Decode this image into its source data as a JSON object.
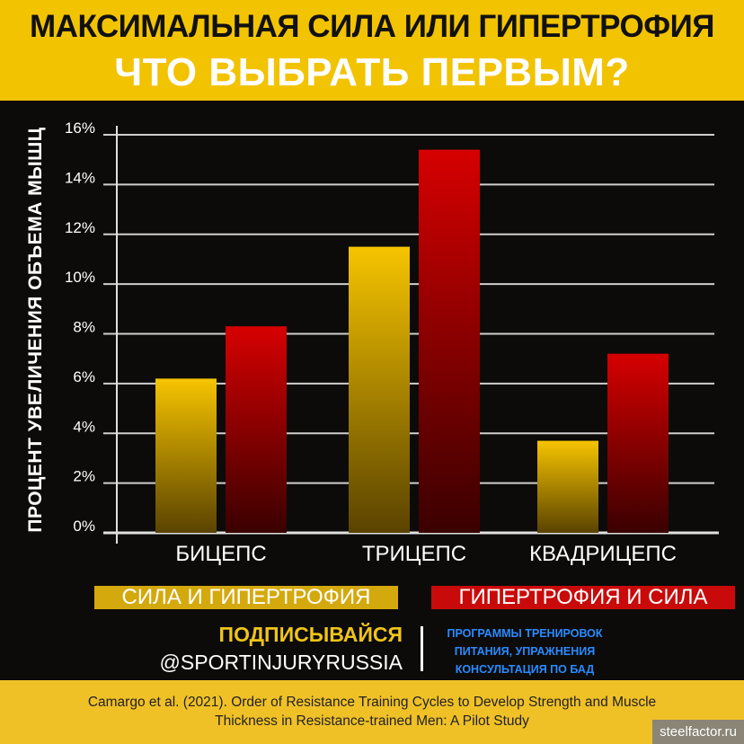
{
  "header": {
    "title_line1": "МАКСИМАЛЬНАЯ СИЛА ИЛИ ГИПЕРТРОФИЯ",
    "title_line2": "ЧТО ВЫБРАТЬ ПЕРВЫМ?"
  },
  "chart_data": {
    "type": "bar",
    "title": "МАКСИМАЛЬНАЯ СИЛА ИЛИ ГИПЕРТРОФИЯ — ЧТО ВЫБРАТЬ ПЕРВЫМ?",
    "ylabel": "ПРОЦЕНТ УВЕЛИЧЕНИЯ ОБЪЕМА МЫШЦ",
    "xlabel": "",
    "categories": [
      "БИЦЕПС",
      "ТРИЦЕПС",
      "КВАДРИЦЕПС"
    ],
    "series": [
      {
        "name": "СИЛА И ГИПЕРТРОФИЯ",
        "color": "#f2c200",
        "values": [
          6.2,
          11.5,
          3.7
        ]
      },
      {
        "name": "ГИПЕРТРОФИЯ И СИЛА",
        "color": "#d00000",
        "values": [
          8.3,
          15.4,
          7.2
        ]
      }
    ],
    "ylim": [
      0,
      16
    ],
    "yticks": [
      "0%",
      "2%",
      "4%",
      "6%",
      "8%",
      "10%",
      "12%",
      "14%",
      "16%"
    ],
    "grid": true,
    "legend": "bottom"
  },
  "promo": {
    "subscribe": "ПОДПИСЫВАЙСЯ",
    "handle": "@SPORTINJURYRUSSIA",
    "services": [
      "ПРОГРАММЫ ТРЕНИРОВОК",
      "ПИТАНИЯ, УПРАЖНЕНИЯ",
      "КОНСУЛЬТАЦИЯ ПО БАД"
    ]
  },
  "footer": {
    "citation_line1": "Camargo et al. (2021). Order of Resistance Training Cycles to Develop Strength and Muscle",
    "citation_line2": "Thickness in Resistance-trained Men: A Pilot Study",
    "watermark": "steelfactor.ru"
  }
}
